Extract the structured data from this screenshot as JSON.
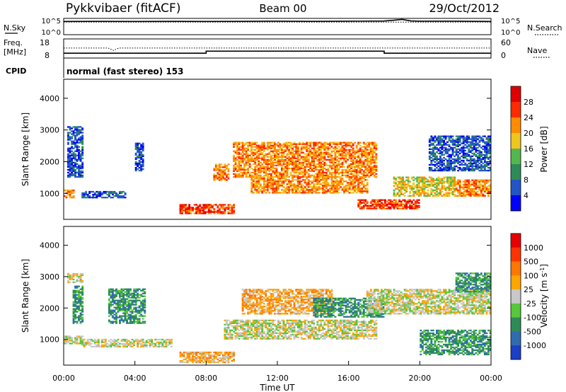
{
  "header": {
    "station": "Pykkvibaer (fitACF)",
    "beam": "Beam 00",
    "date": "29/Oct/2012"
  },
  "chart_data": [
    {
      "type": "line",
      "name": "noise-panel",
      "left_label": "N.Sky",
      "right_label": "N.Search",
      "yticks_left": [
        "10^5",
        "10^0"
      ],
      "yticks_right": [
        "10^5",
        "10^0"
      ],
      "ylim_log10": [
        0,
        5
      ],
      "x_hours": [
        0,
        2,
        4,
        6,
        8,
        10,
        12,
        14,
        16,
        18,
        18.5,
        19,
        19.5,
        20,
        22,
        24
      ],
      "nsky_log10": [
        4.2,
        4.25,
        4.2,
        4.25,
        4.2,
        4.25,
        4.3,
        4.25,
        4.3,
        4.35,
        4.6,
        4.9,
        4.4,
        4.3,
        4.3,
        4.2
      ],
      "nsearch_log10": [
        4.0,
        4.0,
        4.0,
        4.0,
        4.0,
        4.0,
        4.0,
        4.0,
        4.0,
        4.0,
        4.0,
        4.0,
        4.0,
        4.0,
        4.0,
        4.0
      ]
    },
    {
      "type": "line",
      "name": "freq-nave-panel",
      "left_label": "Freq.",
      "left_unit": "[MHz]",
      "right_label": "Nave",
      "yticks_left": [
        "18",
        "8"
      ],
      "yticks_right": [
        "60",
        "0"
      ],
      "ylim_left": [
        8,
        18
      ],
      "ylim_right": [
        0,
        60
      ],
      "freq_x_hours": [
        0,
        8,
        8,
        18,
        18,
        24
      ],
      "freq_mhz": [
        10.2,
        10.2,
        11.5,
        11.5,
        10.2,
        10.2
      ],
      "nave_x_hours": [
        0,
        2.5,
        2.8,
        3.1,
        24
      ],
      "nave": [
        33,
        33,
        24,
        33,
        33
      ]
    },
    {
      "type": "table",
      "name": "cpid",
      "label": "CPID",
      "value": "normal (fast stereo) 153"
    },
    {
      "type": "heatmap",
      "name": "power",
      "ylabel": "Slant Range [km]",
      "yticks": [
        "1000",
        "2000",
        "3000",
        "4000"
      ],
      "ylim": [
        180,
        4600
      ],
      "xlim_hours": [
        0,
        24
      ],
      "colorbar_label": "Power [dB]",
      "colorbar_ticks": [
        "4",
        "8",
        "12",
        "16",
        "20",
        "24",
        "28"
      ],
      "colorbar_colors": [
        "#0000ff",
        "#2255c8",
        "#2e8b57",
        "#52b84e",
        "#f0c61e",
        "#ff8c00",
        "#ff2a00",
        "#e00000"
      ],
      "echo_regions": [
        {
          "t0": 0.0,
          "t1": 0.6,
          "r0": 850,
          "r1": 1100,
          "level": 5
        },
        {
          "t0": 0.2,
          "t1": 1.0,
          "r0": 1500,
          "r1": 3100,
          "level": 1
        },
        {
          "t0": 1.0,
          "t1": 3.5,
          "r0": 850,
          "r1": 1050,
          "level": 1
        },
        {
          "t0": 4.0,
          "t1": 4.4,
          "r0": 1700,
          "r1": 2600,
          "level": 1
        },
        {
          "t0": 6.5,
          "t1": 9.5,
          "r0": 350,
          "r1": 650,
          "level": 6
        },
        {
          "t0": 8.4,
          "t1": 9.2,
          "r0": 1400,
          "r1": 1900,
          "level": 5
        },
        {
          "t0": 9.5,
          "t1": 17.5,
          "r0": 1500,
          "r1": 2600,
          "level": 5
        },
        {
          "t0": 10.5,
          "t1": 17.0,
          "r0": 1000,
          "r1": 1500,
          "level": 5
        },
        {
          "t0": 16.5,
          "t1": 20.0,
          "r0": 500,
          "r1": 800,
          "level": 6
        },
        {
          "t0": 18.5,
          "t1": 22.0,
          "r0": 900,
          "r1": 1500,
          "level": 4
        },
        {
          "t0": 20.5,
          "t1": 24.0,
          "r0": 1700,
          "r1": 2800,
          "level": 1
        },
        {
          "t0": 22.0,
          "t1": 24.0,
          "r0": 900,
          "r1": 1400,
          "level": 5
        }
      ]
    },
    {
      "type": "heatmap",
      "name": "velocity",
      "ylabel": "Slant Range [km]",
      "yticks": [
        "1000",
        "2000",
        "3000",
        "4000"
      ],
      "ylim": [
        180,
        4600
      ],
      "xlim_hours": [
        0,
        24
      ],
      "xlabel": "Time UT",
      "xticks": [
        "00:00",
        "04:00",
        "08:00",
        "12:00",
        "16:00",
        "20:00",
        "00:00"
      ],
      "colorbar_label": "Velocity [m s",
      "colorbar_label_sup": "-1",
      "colorbar_label_end": "]",
      "colorbar_ticks": [
        "1000",
        "500",
        "100",
        "25",
        "-25",
        "-100",
        "-500",
        "-1000"
      ],
      "colorbar_colors": [
        "#1a3fc8",
        "#2e6cb0",
        "#2e8b57",
        "#56c83a",
        "#c8c8c8",
        "#ffa500",
        "#ff7700",
        "#ff3300",
        "#e60000"
      ],
      "echo_regions": [
        {
          "t0": 0.0,
          "t1": 1.0,
          "r0": 850,
          "r1": 1100,
          "level": 4
        },
        {
          "t0": 0.2,
          "t1": 1.0,
          "r0": 2800,
          "r1": 3100,
          "level": 4
        },
        {
          "t0": 0.5,
          "t1": 1.0,
          "r0": 1500,
          "r1": 2700,
          "level": 2
        },
        {
          "t0": 1.0,
          "t1": 6.0,
          "r0": 750,
          "r1": 1000,
          "level": 4
        },
        {
          "t0": 2.5,
          "t1": 4.5,
          "r0": 1500,
          "r1": 2600,
          "level": 2
        },
        {
          "t0": 6.5,
          "t1": 9.5,
          "r0": 250,
          "r1": 600,
          "level": 5
        },
        {
          "t0": 9.0,
          "t1": 17.5,
          "r0": 1000,
          "r1": 1600,
          "level": 4
        },
        {
          "t0": 10.0,
          "t1": 15.0,
          "r0": 1800,
          "r1": 2600,
          "level": 5
        },
        {
          "t0": 14.0,
          "t1": 18.0,
          "r0": 1700,
          "r1": 2300,
          "level": 2
        },
        {
          "t0": 17.0,
          "t1": 24.0,
          "r0": 1800,
          "r1": 2600,
          "level": 4
        },
        {
          "t0": 20.0,
          "t1": 24.0,
          "r0": 500,
          "r1": 1300,
          "level": 2
        },
        {
          "t0": 22.0,
          "t1": 24.0,
          "r0": 2500,
          "r1": 3100,
          "level": 2
        }
      ]
    }
  ]
}
